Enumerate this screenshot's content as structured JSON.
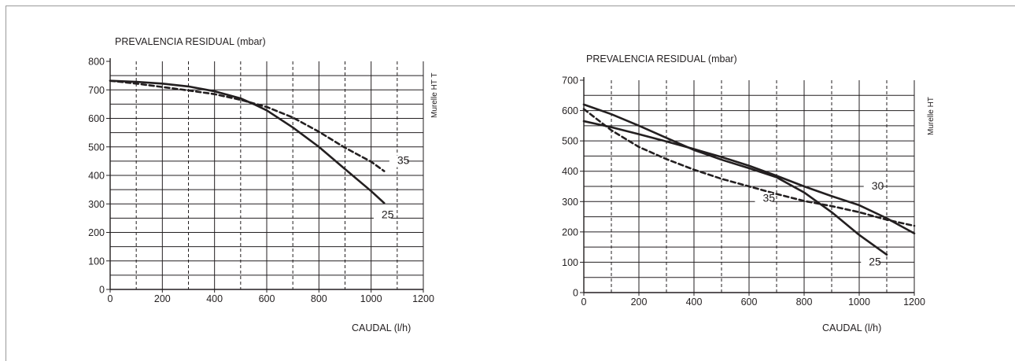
{
  "chart_data": [
    {
      "type": "line",
      "ylabel": "PREVALENCIA RESIDUAL (mbar)",
      "xlabel": "CAUDAL (l/h)",
      "side_label": "Murelle HT T",
      "xlim": [
        0,
        1200
      ],
      "ylim": [
        0,
        800
      ],
      "x_ticks": [
        "0",
        "200",
        "400",
        "600",
        "800",
        "1000",
        "1200"
      ],
      "y_ticks": [
        "0",
        "100",
        "200",
        "300",
        "400",
        "500",
        "600",
        "700",
        "800"
      ],
      "grid": true,
      "series": [
        {
          "name": "25",
          "style": "solid",
          "label_at": [
            1040,
            250
          ],
          "x": [
            0,
            100,
            200,
            300,
            400,
            500,
            550,
            600,
            700,
            800,
            900,
            1000,
            1050
          ],
          "y": [
            732,
            728,
            722,
            712,
            695,
            670,
            650,
            628,
            568,
            500,
            422,
            345,
            303
          ]
        },
        {
          "name": "35",
          "style": "dashed",
          "label_at": [
            1100,
            440
          ],
          "x": [
            0,
            100,
            200,
            300,
            400,
            500,
            600,
            700,
            800,
            900,
            1000,
            1050
          ],
          "y": [
            732,
            722,
            710,
            698,
            685,
            665,
            640,
            603,
            553,
            497,
            448,
            415
          ]
        }
      ]
    },
    {
      "type": "line",
      "ylabel": "PREVALENCIA RESIDUAL (mbar)",
      "xlabel": "CAUDAL (l/h)",
      "side_label": "Murelle HT",
      "xlim": [
        0,
        1200
      ],
      "ylim": [
        0,
        700
      ],
      "x_ticks": [
        "0",
        "200",
        "400",
        "600",
        "800",
        "1000",
        "1200"
      ],
      "y_ticks": [
        "0",
        "100",
        "200",
        "300",
        "400",
        "500",
        "600",
        "700"
      ],
      "grid": true,
      "series": [
        {
          "name": "25",
          "style": "solid",
          "label_at": [
            1035,
            90
          ],
          "x": [
            0,
            100,
            200,
            300,
            400,
            500,
            600,
            700,
            800,
            900,
            1000,
            1100
          ],
          "y": [
            620,
            588,
            550,
            510,
            470,
            438,
            410,
            380,
            330,
            265,
            190,
            125
          ]
        },
        {
          "name": "30",
          "style": "solid",
          "label_at": [
            1045,
            340
          ],
          "x": [
            0,
            100,
            200,
            300,
            400,
            500,
            600,
            700,
            800,
            900,
            1000,
            1100,
            1200
          ],
          "y": [
            565,
            545,
            522,
            498,
            473,
            447,
            418,
            385,
            350,
            318,
            288,
            245,
            195
          ]
        },
        {
          "name": "35",
          "style": "dashed",
          "label_at": [
            650,
            300
          ],
          "x": [
            0,
            100,
            200,
            300,
            400,
            500,
            600,
            700,
            800,
            900,
            1000,
            1100,
            1200
          ],
          "y": [
            605,
            535,
            480,
            440,
            405,
            375,
            350,
            325,
            302,
            285,
            265,
            240,
            220
          ]
        }
      ]
    }
  ]
}
